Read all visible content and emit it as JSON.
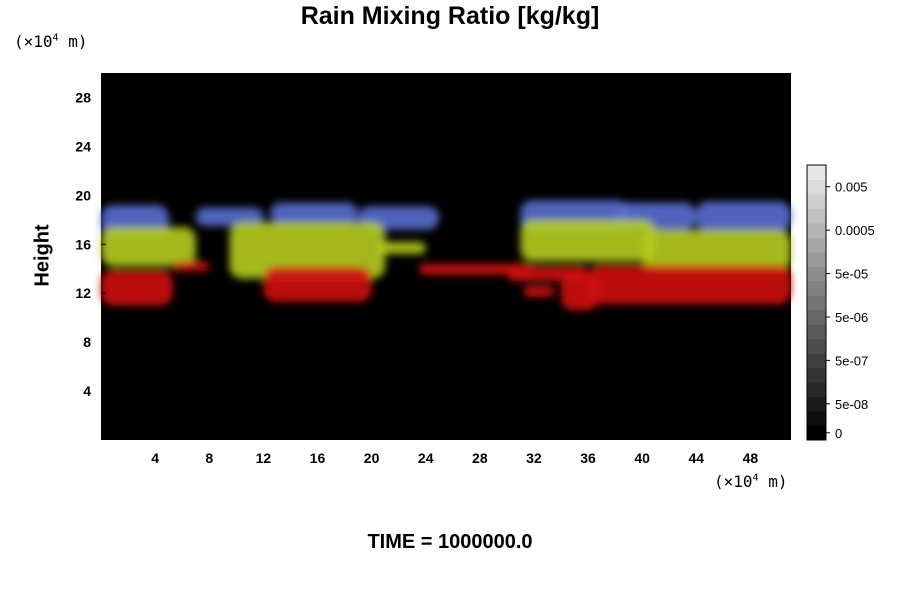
{
  "chart_data": {
    "type": "heatmap",
    "title": "Rain Mixing Ratio [kg/kg]",
    "ylabel": "Height",
    "x_unit": {
      "prefix": "(×10",
      "exp": "4",
      "suffix": " m)"
    },
    "y_unit": {
      "prefix": "(×10",
      "exp": "4",
      "suffix": " m)"
    },
    "footer": "TIME = 1000000.0",
    "xlim": [
      0,
      51
    ],
    "ylim": [
      0,
      30
    ],
    "x_ticks": [
      4,
      8,
      12,
      16,
      20,
      24,
      28,
      32,
      36,
      40,
      44,
      48
    ],
    "x_tick_labels": [
      "4",
      "8",
      "12",
      "16",
      "20",
      "24",
      "28",
      "32",
      "36",
      "40",
      "44",
      "48"
    ],
    "y_ticks": [
      4,
      8,
      12,
      16,
      20,
      24,
      28
    ],
    "y_tick_labels": [
      "4",
      "8",
      "12",
      "16",
      "20",
      "24",
      "28"
    ],
    "background_color": "#000000",
    "layers": [
      {
        "name": "upper",
        "color": "#5a6fd0",
        "blobs": [
          {
            "x": [
              0,
              5
            ],
            "y": [
              16.6,
              19.2
            ]
          },
          {
            "x": [
              7,
              12
            ],
            "y": [
              17.5,
              19.0
            ]
          },
          {
            "x": [
              12.5,
              19
            ],
            "y": [
              17.6,
              19.4
            ]
          },
          {
            "x": [
              19,
              25
            ],
            "y": [
              17.2,
              19.1
            ]
          },
          {
            "x": [
              31,
              39
            ],
            "y": [
              17.0,
              19.6
            ]
          },
          {
            "x": [
              38,
              44
            ],
            "y": [
              17.2,
              19.4
            ]
          },
          {
            "x": [
              44,
              51
            ],
            "y": [
              17.0,
              19.5
            ]
          }
        ]
      },
      {
        "name": "middle",
        "color": "#b6cc1e",
        "blobs": [
          {
            "x": [
              0,
              7
            ],
            "y": [
              14.2,
              17.4
            ]
          },
          {
            "x": [
              9.5,
              21
            ],
            "y": [
              13.2,
              17.8
            ]
          },
          {
            "x": [
              20.5,
              24
            ],
            "y": [
              15.2,
              16.2
            ]
          },
          {
            "x": [
              31,
              41
            ],
            "y": [
              14.6,
              18.0
            ]
          },
          {
            "x": [
              40,
              51
            ],
            "y": [
              13.8,
              17.2
            ]
          }
        ]
      },
      {
        "name": "lower",
        "color": "#d01212",
        "blobs": [
          {
            "x": [
              0,
              5.3
            ],
            "y": [
              11.0,
              13.9
            ]
          },
          {
            "x": [
              5.3,
              8
            ],
            "y": [
              13.8,
              14.6
            ]
          },
          {
            "x": [
              12,
              20
            ],
            "y": [
              11.3,
              14.2
            ]
          },
          {
            "x": [
              23.5,
              32
            ],
            "y": [
              13.5,
              14.4
            ]
          },
          {
            "x": [
              30,
              36
            ],
            "y": [
              13.0,
              14.2
            ]
          },
          {
            "x": [
              31.2,
              33.5
            ],
            "y": [
              11.7,
              12.6
            ]
          },
          {
            "x": [
              34.0,
              36.8
            ],
            "y": [
              10.6,
              13.7
            ]
          },
          {
            "x": [
              36,
              51
            ],
            "y": [
              11.1,
              14.3
            ]
          }
        ]
      }
    ],
    "colorbar": {
      "levels": 19,
      "color_min": "#000000",
      "color_max": "#e8e8e8",
      "labels": [
        "0",
        "5e-08",
        "5e-07",
        "5e-06",
        "5e-05",
        "0.0005",
        "0.005"
      ],
      "label_levels": [
        0,
        2,
        5,
        8,
        11,
        14,
        17
      ]
    }
  }
}
